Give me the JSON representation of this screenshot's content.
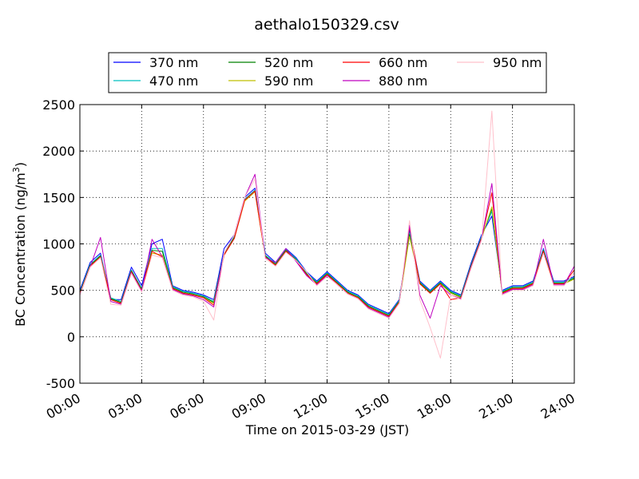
{
  "chart_data": {
    "type": "line",
    "title": "aethalo150329.csv",
    "xlabel": "Time on 2015-03-29 (JST)",
    "ylabel": "BC Concentration (ng/m",
    "ylabel_sup": "3",
    "ylabel_end": ")",
    "xlim": [
      "00:00",
      "24:00"
    ],
    "ylim": [
      -500,
      2500
    ],
    "xticks": [
      "00:00",
      "03:00",
      "06:00",
      "09:00",
      "12:00",
      "15:00",
      "18:00",
      "21:00",
      "24:00"
    ],
    "yticks": [
      "-500",
      "0",
      "500",
      "1000",
      "1500",
      "2000",
      "2500"
    ],
    "grid": true,
    "legend": {
      "placement": "top-center",
      "columns": 4
    },
    "x": [
      "00:00",
      "00:30",
      "01:00",
      "01:30",
      "02:00",
      "02:30",
      "03:00",
      "03:30",
      "04:00",
      "04:30",
      "05:00",
      "05:30",
      "06:00",
      "06:30",
      "07:00",
      "07:30",
      "08:00",
      "08:30",
      "09:00",
      "09:30",
      "10:00",
      "10:30",
      "11:00",
      "11:30",
      "12:00",
      "12:30",
      "13:00",
      "13:30",
      "14:00",
      "14:30",
      "15:00",
      "15:30",
      "16:00",
      "16:30",
      "17:00",
      "17:30",
      "18:00",
      "18:30",
      "19:00",
      "19:30",
      "20:00",
      "20:30",
      "21:00",
      "21:30",
      "22:00",
      "22:30",
      "23:00",
      "23:30",
      "24:00"
    ],
    "series": [
      {
        "name": "370 nm",
        "color": "#0000ff",
        "values": [
          500,
          800,
          900,
          400,
          400,
          750,
          550,
          1000,
          1050,
          550,
          500,
          480,
          450,
          400,
          950,
          1100,
          1500,
          1600,
          900,
          800,
          950,
          850,
          700,
          600,
          700,
          600,
          500,
          450,
          350,
          300,
          250,
          400,
          1150,
          600,
          500,
          600,
          500,
          450,
          800,
          1100,
          1300,
          500,
          550,
          550,
          600,
          950,
          600,
          600,
          650
        ]
      },
      {
        "name": "470 nm",
        "color": "#00bfbf",
        "values": [
          480,
          780,
          880,
          420,
          380,
          720,
          520,
          950,
          950,
          540,
          490,
          470,
          440,
          380,
          900,
          1080,
          1480,
          1580,
          880,
          790,
          940,
          840,
          690,
          590,
          690,
          590,
          490,
          440,
          340,
          290,
          240,
          390,
          1120,
          590,
          490,
          590,
          490,
          440,
          780,
          1080,
          1350,
          490,
          540,
          540,
          590,
          940,
          590,
          590,
          640
        ]
      },
      {
        "name": "520 nm",
        "color": "#008000",
        "values": [
          470,
          770,
          870,
          410,
          370,
          710,
          510,
          930,
          920,
          530,
          480,
          460,
          430,
          370,
          890,
          1070,
          1470,
          1570,
          870,
          780,
          930,
          830,
          680,
          580,
          680,
          580,
          480,
          430,
          330,
          280,
          230,
          380,
          1100,
          580,
          480,
          580,
          480,
          430,
          770,
          1070,
          1380,
          480,
          530,
          530,
          580,
          930,
          580,
          580,
          630
        ]
      },
      {
        "name": "590 nm",
        "color": "#bfbf00",
        "values": [
          460,
          760,
          860,
          400,
          360,
          700,
          500,
          900,
          880,
          520,
          470,
          450,
          420,
          360,
          880,
          1060,
          1460,
          1560,
          860,
          770,
          920,
          820,
          670,
          570,
          670,
          570,
          470,
          420,
          320,
          270,
          220,
          370,
          1080,
          570,
          470,
          570,
          470,
          420,
          760,
          1060,
          1400,
          470,
          520,
          520,
          570,
          920,
          570,
          570,
          620
        ]
      },
      {
        "name": "660 nm",
        "color": "#ff0000",
        "values": [
          460,
          760,
          860,
          400,
          360,
          700,
          500,
          920,
          860,
          520,
          470,
          450,
          420,
          340,
          880,
          1060,
          1470,
          1570,
          860,
          770,
          920,
          820,
          670,
          570,
          670,
          570,
          470,
          420,
          320,
          270,
          220,
          370,
          1180,
          570,
          470,
          570,
          400,
          420,
          760,
          1060,
          1550,
          470,
          520,
          520,
          570,
          920,
          570,
          570,
          720
        ]
      },
      {
        "name": "880 nm",
        "color": "#bf00bf",
        "values": [
          450,
          750,
          1070,
          380,
          350,
          690,
          490,
          1050,
          860,
          510,
          460,
          440,
          400,
          320,
          900,
          1100,
          1500,
          1750,
          850,
          800,
          950,
          810,
          660,
          560,
          660,
          560,
          460,
          410,
          310,
          260,
          210,
          360,
          1200,
          450,
          200,
          550,
          450,
          410,
          750,
          1050,
          1650,
          460,
          510,
          510,
          560,
          1050,
          560,
          560,
          760
        ]
      },
      {
        "name": "950 nm",
        "color": "#ffc0cb",
        "values": [
          450,
          750,
          850,
          350,
          340,
          680,
          480,
          880,
          850,
          500,
          450,
          430,
          380,
          180,
          900,
          1100,
          1500,
          1700,
          840,
          760,
          910,
          820,
          700,
          550,
          650,
          560,
          460,
          410,
          300,
          250,
          200,
          360,
          1250,
          400,
          100,
          -230,
          450,
          400,
          740,
          1040,
          2430,
          450,
          500,
          500,
          550,
          900,
          550,
          550,
          690
        ]
      }
    ]
  }
}
